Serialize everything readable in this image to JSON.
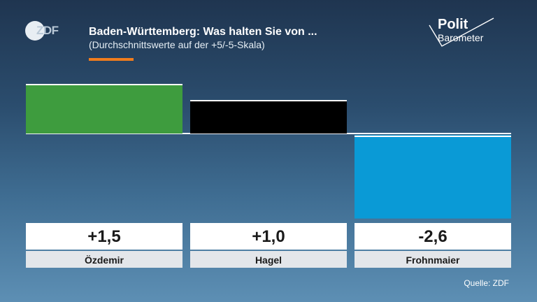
{
  "header": {
    "title": "Baden-Württemberg: Was halten Sie von ...",
    "subtitle": "(Durchschnittswerte auf der +5/-5-Skala)",
    "logo_text": "ZDF",
    "brand_top": "Polit",
    "brand_bottom": "Barometer",
    "accent_color": "#f07c1d"
  },
  "chart_data": {
    "type": "bar",
    "categories": [
      "Özdemir",
      "Hagel",
      "Frohnmaier"
    ],
    "values": [
      1.5,
      1.0,
      -2.6
    ],
    "value_labels": [
      "+1,5",
      "+1,0",
      "-2,6"
    ],
    "colors": [
      "#3e9c3e",
      "#000000",
      "#0a9ad6"
    ],
    "ylim": [
      -5,
      5
    ],
    "baseline": 0
  },
  "footer": {
    "source": "Quelle: ZDF"
  }
}
